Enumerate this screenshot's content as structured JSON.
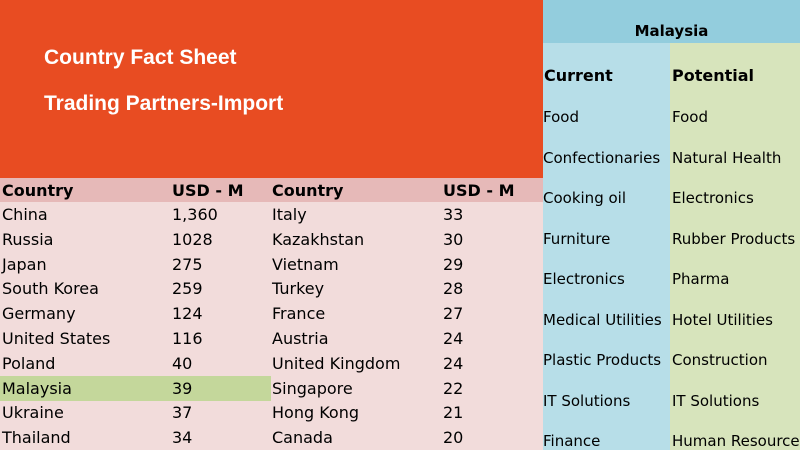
{
  "header": {
    "title": "Country Fact Sheet",
    "subtitle": "Trading Partners-Import"
  },
  "trade_table": {
    "columns": [
      "Country",
      "USD - M",
      "Country",
      "USD - M"
    ],
    "left_rows": [
      {
        "country": "China",
        "value": "1,360"
      },
      {
        "country": "Russia",
        "value": "1028"
      },
      {
        "country": "Japan",
        "value": "275"
      },
      {
        "country": "South Korea",
        "value": "259"
      },
      {
        "country": "Germany",
        "value": "124"
      },
      {
        "country": "United States",
        "value": "116"
      },
      {
        "country": "Poland",
        "value": "40"
      },
      {
        "country": "Malaysia",
        "value": "39"
      },
      {
        "country": "Ukraine",
        "value": "37"
      },
      {
        "country": "Thailand",
        "value": "34"
      }
    ],
    "right_rows": [
      {
        "country": "Italy",
        "value": "33"
      },
      {
        "country": "Kazakhstan",
        "value": "30"
      },
      {
        "country": "Vietnam",
        "value": "29"
      },
      {
        "country": "Turkey",
        "value": "28"
      },
      {
        "country": "France",
        "value": "27"
      },
      {
        "country": "Austria",
        "value": "24"
      },
      {
        "country": "United Kingdom",
        "value": "24"
      },
      {
        "country": "Singapore",
        "value": "22"
      },
      {
        "country": "Hong Kong",
        "value": "21"
      },
      {
        "country": "Canada",
        "value": "20"
      }
    ],
    "highlighted_country": "Malaysia"
  },
  "malaysia_panel": {
    "title": "Malaysia",
    "current_label": "Current",
    "potential_label": "Potential",
    "current": [
      "Food",
      "Confectionaries",
      "Cooking oil",
      "Furniture",
      "Electronics",
      "Medical Utilities",
      "Plastic Products",
      " IT Solutions",
      "Finance"
    ],
    "potential": [
      "Food",
      "Natural Health",
      "Electronics",
      "Rubber Products",
      "Pharma",
      "Hotel Utilities",
      "Construction",
      "IT Solutions",
      "Human Resource"
    ]
  },
  "colors": {
    "banner": "#E84C22",
    "table_bg": "#F2DCDB",
    "table_header": "#E6B9B8",
    "highlight": "#C4D79B",
    "panel_title": "#93CDDD",
    "current_col": "#B7DEE8",
    "potential_col": "#D7E4BC"
  }
}
